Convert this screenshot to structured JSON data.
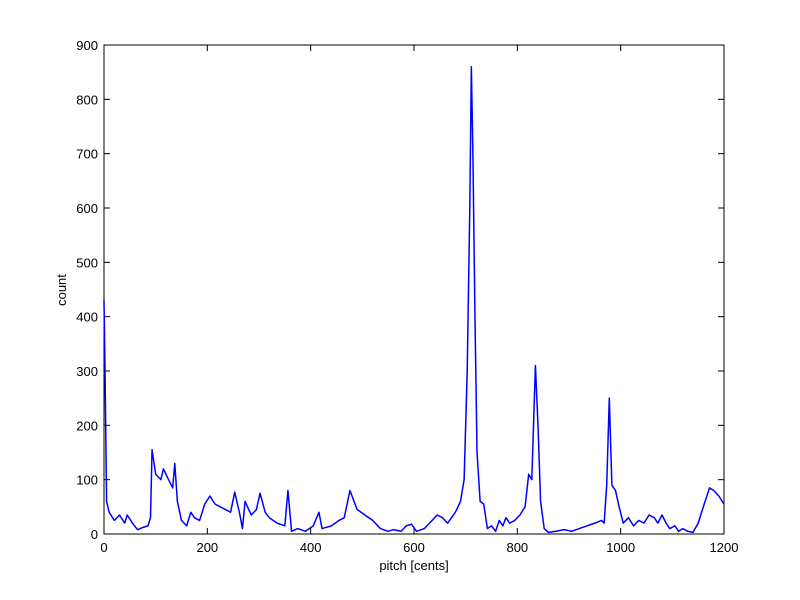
{
  "chart_data": {
    "type": "line",
    "xlabel": "pitch [cents]",
    "ylabel": "count",
    "x": [
      0,
      2,
      5,
      10,
      20,
      30,
      40,
      45,
      55,
      65,
      75,
      85,
      90,
      93,
      100,
      110,
      115,
      125,
      133,
      137,
      142,
      150,
      160,
      168,
      175,
      185,
      195,
      205,
      215,
      225,
      235,
      245,
      253,
      262,
      268,
      273,
      285,
      295,
      302,
      312,
      320,
      335,
      350,
      356,
      363,
      375,
      390,
      405,
      416,
      422,
      440,
      455,
      465,
      476,
      490,
      505,
      520,
      535,
      550,
      560,
      575,
      585,
      595,
      605,
      620,
      630,
      645,
      655,
      665,
      680,
      690,
      697,
      703,
      708,
      711,
      714,
      718,
      722,
      728,
      735,
      742,
      750,
      758,
      765,
      772,
      778,
      785,
      795,
      805,
      815,
      822,
      828,
      835,
      840,
      845,
      852,
      860,
      875,
      890,
      905,
      920,
      935,
      950,
      963,
      968,
      973,
      978,
      983,
      990,
      997,
      1005,
      1015,
      1025,
      1035,
      1045,
      1055,
      1065,
      1072,
      1080,
      1088,
      1095,
      1105,
      1112,
      1120,
      1130,
      1140,
      1150,
      1160,
      1172,
      1180,
      1190,
      1200
    ],
    "series": [
      {
        "name": "count",
        "color": "#0000ff",
        "values": [
          430,
          300,
          60,
          40,
          25,
          35,
          20,
          35,
          20,
          8,
          12,
          15,
          30,
          155,
          110,
          100,
          120,
          100,
          85,
          130,
          60,
          25,
          15,
          40,
          30,
          25,
          55,
          70,
          55,
          50,
          45,
          40,
          77,
          40,
          10,
          60,
          35,
          45,
          75,
          40,
          30,
          20,
          15,
          80,
          5,
          10,
          5,
          15,
          40,
          10,
          15,
          25,
          30,
          80,
          45,
          35,
          25,
          10,
          5,
          8,
          5,
          15,
          18,
          5,
          10,
          20,
          35,
          30,
          20,
          40,
          60,
          100,
          300,
          600,
          860,
          700,
          400,
          150,
          60,
          55,
          10,
          15,
          5,
          25,
          15,
          30,
          20,
          25,
          35,
          50,
          110,
          100,
          310,
          200,
          60,
          10,
          3,
          5,
          8,
          5,
          10,
          15,
          20,
          25,
          20,
          90,
          250,
          90,
          80,
          50,
          20,
          30,
          15,
          25,
          20,
          35,
          30,
          20,
          35,
          20,
          10,
          15,
          5,
          10,
          5,
          3,
          20,
          50,
          85,
          80,
          70,
          55
        ]
      }
    ],
    "xlim": [
      0,
      1200
    ],
    "xticks": [
      0,
      200,
      400,
      600,
      800,
      1000,
      1200
    ],
    "ylim": [
      0,
      900
    ],
    "yticks": [
      0,
      100,
      200,
      300,
      400,
      500,
      600,
      700,
      800,
      900
    ]
  }
}
